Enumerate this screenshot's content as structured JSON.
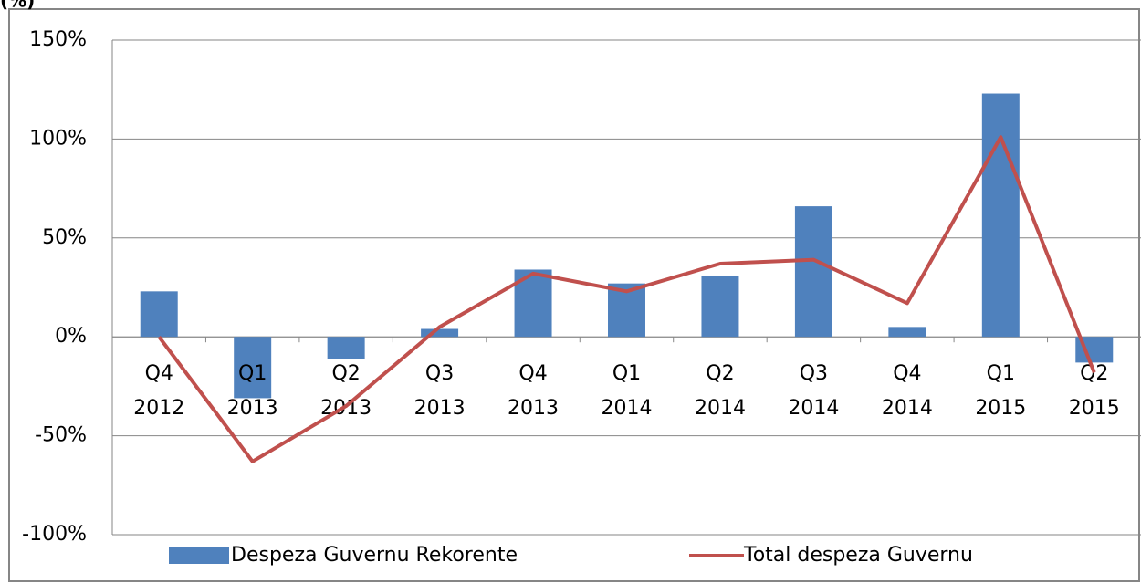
{
  "chart_data": {
    "type": "bar-line",
    "y_label": "(%)",
    "categories": [
      "Q4 2012",
      "Q1 2013",
      "Q2 2013",
      "Q3 2013",
      "Q4 2013",
      "Q1 2014",
      "Q2 2014",
      "Q3 2014",
      "Q4 2014",
      "Q1 2015",
      "Q2 2015"
    ],
    "series": [
      {
        "name": "Despeza Guvernu Rekorente",
        "type": "bar",
        "color": "#4f81bd",
        "values": [
          23,
          -31,
          -11,
          4,
          34,
          27,
          31,
          66,
          5,
          123,
          -13
        ]
      },
      {
        "name": "Total despeza Guvernu",
        "type": "line",
        "color": "#c0504d",
        "values": [
          0,
          -63,
          -35,
          5,
          32,
          23,
          37,
          39,
          17,
          101,
          -18
        ]
      }
    ],
    "ylim": [
      -100,
      150
    ],
    "yticks": [
      {
        "value": -100,
        "label": "-100%"
      },
      {
        "value": -50,
        "label": "-50%"
      },
      {
        "value": 0,
        "label": "0%"
      },
      {
        "value": 50,
        "label": "50%"
      },
      {
        "value": 100,
        "label": "100%"
      },
      {
        "value": 150,
        "label": "150%"
      }
    ],
    "grid": true,
    "legend": "bottom"
  }
}
